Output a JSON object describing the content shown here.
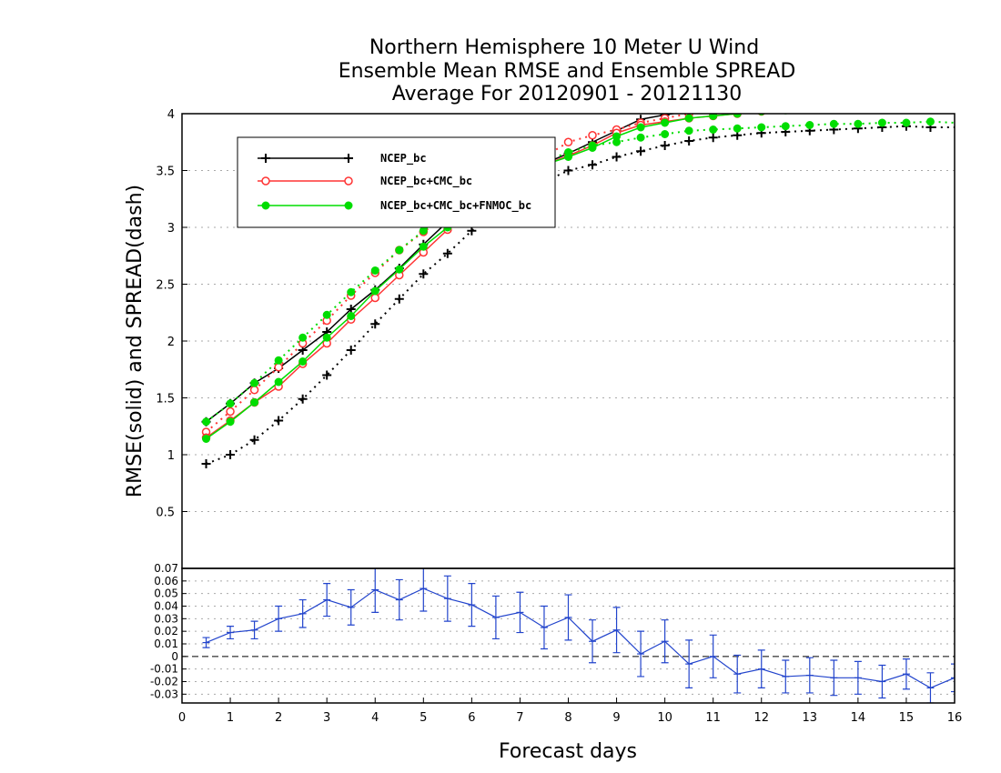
{
  "chart_data": [
    {
      "type": "line",
      "panel": "upper",
      "title": "Northern Hemisphere 10 Meter U Wind",
      "subtitle": "Ensemble Mean RMSE and Ensemble SPREAD",
      "subtitle2": "Average For 20120901 - 20121130",
      "ylabel": "RMSE(solid) and SPREAD(dash)",
      "xlim": [
        0,
        16
      ],
      "ylim": [
        0,
        4
      ],
      "yticks": [
        "0.5",
        "1",
        "1.5",
        "2",
        "2.5",
        "3",
        "3.5",
        "4"
      ],
      "grid": true,
      "legend_position": "top-left",
      "x": [
        0.5,
        1,
        1.5,
        2,
        2.5,
        3,
        3.5,
        4,
        4.5,
        5,
        5.5,
        6,
        6.5,
        7,
        7.5,
        8,
        8.5,
        9,
        9.5,
        10,
        10.5,
        11,
        11.5,
        12,
        12.5,
        13,
        13.5,
        14,
        14.5,
        15,
        15.5,
        16
      ],
      "series": [
        {
          "name": "NCEP_bc",
          "color": "#000000",
          "marker": "plus",
          "rmse": [
            1.29,
            1.45,
            1.63,
            1.76,
            1.92,
            2.08,
            2.28,
            2.45,
            2.64,
            2.85,
            3.05,
            3.22,
            3.37,
            3.48,
            3.56,
            3.65,
            3.75,
            3.85,
            3.95,
            3.99,
            4.02,
            4.05,
            4.08,
            4.1,
            4.12,
            4.14,
            4.15,
            4.16,
            4.17,
            4.18,
            4.19,
            4.2
          ],
          "spread": [
            0.92,
            1.0,
            1.13,
            1.3,
            1.49,
            1.7,
            1.92,
            2.15,
            2.37,
            2.59,
            2.77,
            2.97,
            3.13,
            3.28,
            3.4,
            3.5,
            3.55,
            3.62,
            3.67,
            3.72,
            3.76,
            3.79,
            3.81,
            3.83,
            3.84,
            3.85,
            3.86,
            3.87,
            3.88,
            3.89,
            3.88,
            3.88
          ]
        },
        {
          "name": "NCEP_bc+CMC_bc",
          "color": "#ff3333",
          "marker": "circle",
          "rmse": [
            1.15,
            1.3,
            1.46,
            1.6,
            1.8,
            1.98,
            2.19,
            2.38,
            2.58,
            2.78,
            2.98,
            3.15,
            3.32,
            3.44,
            3.55,
            3.63,
            3.72,
            3.83,
            3.9,
            3.93,
            3.96,
            3.98,
            4.0,
            4.02,
            4.04,
            4.06,
            4.07,
            4.08,
            4.09,
            4.1,
            4.11,
            4.12
          ],
          "spread": [
            1.2,
            1.38,
            1.57,
            1.77,
            1.98,
            2.18,
            2.4,
            2.6,
            2.8,
            2.96,
            3.1,
            3.25,
            3.4,
            3.52,
            3.62,
            3.75,
            3.81,
            3.86,
            3.92,
            3.96,
            4.0,
            4.03,
            4.05,
            4.07,
            4.09,
            4.1,
            4.11,
            4.12,
            4.13,
            4.14,
            4.15,
            4.16
          ]
        },
        {
          "name": "NCEP_bc+CMC_bc+FNMOC_bc",
          "color": "#00dd00",
          "marker": "dot",
          "rmse": [
            1.14,
            1.29,
            1.46,
            1.64,
            1.82,
            2.03,
            2.22,
            2.44,
            2.63,
            2.83,
            3.0,
            3.17,
            3.33,
            3.45,
            3.55,
            3.62,
            3.7,
            3.8,
            3.88,
            3.92,
            3.96,
            3.98,
            4.0,
            4.02,
            4.03,
            4.04,
            4.05,
            4.06,
            4.07,
            4.08,
            4.09,
            4.1
          ],
          "spread": [
            1.29,
            1.45,
            1.63,
            1.83,
            2.03,
            2.23,
            2.43,
            2.62,
            2.8,
            2.97,
            3.13,
            3.27,
            3.4,
            3.5,
            3.58,
            3.66,
            3.72,
            3.75,
            3.79,
            3.82,
            3.85,
            3.86,
            3.87,
            3.88,
            3.89,
            3.9,
            3.91,
            3.91,
            3.92,
            3.92,
            3.93,
            3.92
          ]
        }
      ]
    },
    {
      "type": "line",
      "panel": "lower",
      "xlabel": "Forecast days",
      "xlim": [
        0,
        16
      ],
      "xticks": [
        "0",
        "1",
        "2",
        "3",
        "4",
        "5",
        "6",
        "7",
        "8",
        "9",
        "10",
        "11",
        "12",
        "13",
        "14",
        "15",
        "16"
      ],
      "ylim": [
        -0.037,
        0.07
      ],
      "yticks": [
        "0.07",
        "0.06",
        "0.05",
        "0.04",
        "0.03",
        "0.02",
        "0.01",
        "0",
        "-0.01",
        "-0.02",
        "-0.03"
      ],
      "grid": true,
      "series": [
        {
          "color": "#2244cc",
          "x": [
            0.5,
            1,
            1.5,
            2,
            2.5,
            3,
            3.5,
            4,
            4.5,
            5,
            5.5,
            6,
            6.5,
            7,
            7.5,
            8,
            8.5,
            9,
            9.5,
            10,
            10.5,
            11,
            11.5,
            12,
            12.5,
            13,
            13.5,
            14,
            14.5,
            15,
            15.5,
            16
          ],
          "values": [
            0.011,
            0.019,
            0.021,
            0.03,
            0.034,
            0.045,
            0.039,
            0.053,
            0.045,
            0.054,
            0.046,
            0.041,
            0.031,
            0.035,
            0.023,
            0.031,
            0.012,
            0.021,
            0.002,
            0.012,
            -0.006,
            0.0,
            -0.014,
            -0.01,
            -0.016,
            -0.015,
            -0.017,
            -0.017,
            -0.02,
            -0.014,
            -0.025,
            -0.017
          ],
          "error": [
            0.004,
            0.005,
            0.007,
            0.01,
            0.011,
            0.013,
            0.014,
            0.018,
            0.016,
            0.018,
            0.018,
            0.017,
            0.017,
            0.016,
            0.017,
            0.018,
            0.017,
            0.018,
            0.018,
            0.017,
            0.019,
            0.017,
            0.015,
            0.015,
            0.013,
            0.014,
            0.014,
            0.013,
            0.013,
            0.012,
            0.012,
            0.011
          ]
        }
      ]
    }
  ]
}
